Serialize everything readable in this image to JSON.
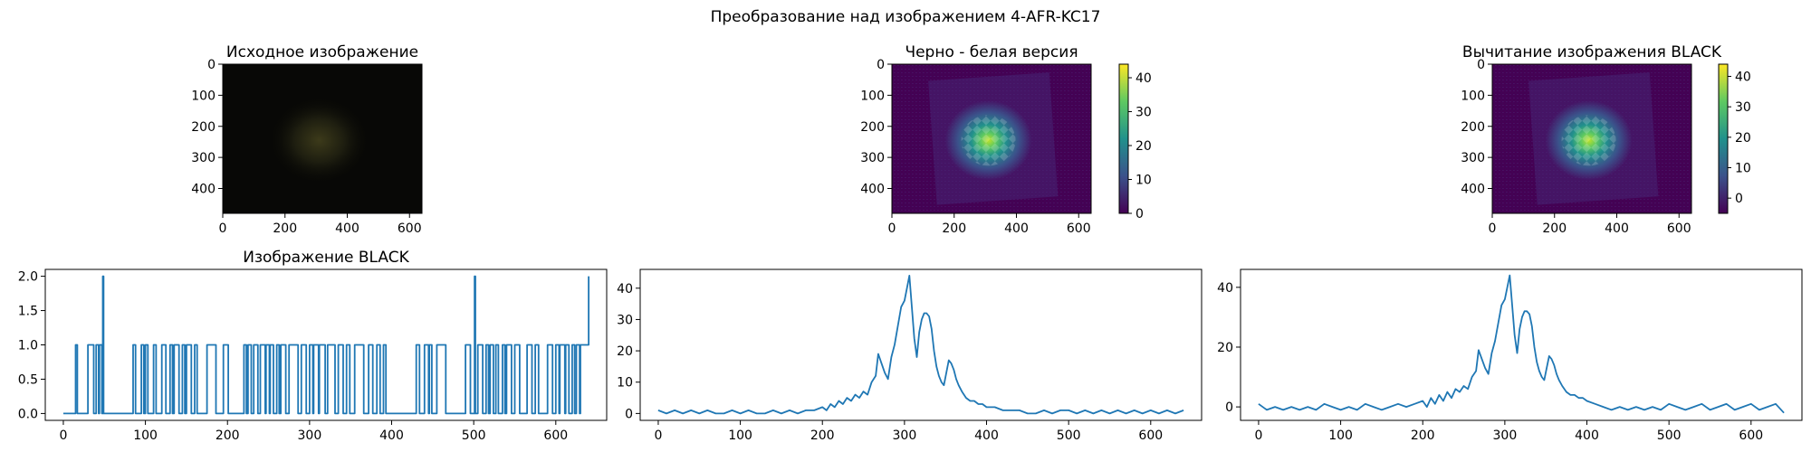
{
  "figure": {
    "suptitle": "Преобразование над изображением 4-AFR-KC17"
  },
  "colors": {
    "line": "#1f77b4",
    "heat_low": "#440154",
    "heat_high": "#fde725"
  },
  "chart_data": [
    {
      "id": "ax-original",
      "type": "heatmap",
      "title": "Исходное изображение",
      "colormap": "rgb-dark",
      "xlim": [
        0,
        640
      ],
      "ylim": [
        480,
        0
      ],
      "xticks": [
        0,
        200,
        400,
        600
      ],
      "yticks": [
        0,
        100,
        200,
        300,
        400
      ],
      "spot_center": [
        310,
        245
      ],
      "colorbar": null
    },
    {
      "id": "ax-grayscale",
      "type": "heatmap",
      "title": "Черно - белая версия",
      "colormap": "viridis",
      "xlim": [
        0,
        640
      ],
      "ylim": [
        480,
        0
      ],
      "xticks": [
        0,
        200,
        400,
        600
      ],
      "yticks": [
        0,
        100,
        200,
        300,
        400
      ],
      "spot_center": [
        310,
        245
      ],
      "colorbar": {
        "min": 0,
        "max": 44,
        "ticks": [
          0,
          10,
          20,
          30,
          40
        ]
      }
    },
    {
      "id": "ax-subtracted",
      "type": "heatmap",
      "title": "Вычитание изображения BLACK",
      "colormap": "viridis",
      "xlim": [
        0,
        640
      ],
      "ylim": [
        480,
        0
      ],
      "xticks": [
        0,
        200,
        400,
        600
      ],
      "yticks": [
        0,
        100,
        200,
        300,
        400
      ],
      "spot_center": [
        310,
        245
      ],
      "colorbar": {
        "min": -5,
        "max": 44,
        "ticks": [
          0,
          10,
          20,
          30,
          40
        ]
      }
    },
    {
      "id": "ax-black",
      "type": "line",
      "title": "Изображение BLACK",
      "xlim": [
        -22,
        662
      ],
      "ylim": [
        -0.1,
        2.1
      ],
      "xticks": [
        0,
        100,
        200,
        300,
        400,
        500,
        600
      ],
      "yticks": [
        0.0,
        0.5,
        1.0,
        1.5,
        2.0
      ],
      "ytick_labels": [
        "0.0",
        "0.5",
        "1.0",
        "1.5",
        "2.0"
      ],
      "ones_intervals": [
        [
          15,
          16
        ],
        [
          30,
          32
        ],
        [
          33,
          36
        ],
        [
          40,
          42
        ],
        [
          44,
          46
        ],
        [
          85,
          87
        ],
        [
          95,
          97
        ],
        [
          100,
          102
        ],
        [
          110,
          112
        ],
        [
          120,
          124
        ],
        [
          130,
          132
        ],
        [
          135,
          140
        ],
        [
          145,
          147
        ],
        [
          150,
          155
        ],
        [
          160,
          162
        ],
        [
          175,
          185
        ],
        [
          195,
          200
        ],
        [
          220,
          222
        ],
        [
          225,
          228
        ],
        [
          232,
          236
        ],
        [
          240,
          245
        ],
        [
          247,
          250
        ],
        [
          252,
          255
        ],
        [
          260,
          262
        ],
        [
          265,
          270
        ],
        [
          275,
          285
        ],
        [
          290,
          295
        ],
        [
          300,
          303
        ],
        [
          305,
          310
        ],
        [
          312,
          318
        ],
        [
          322,
          330
        ],
        [
          335,
          340
        ],
        [
          345,
          348
        ],
        [
          355,
          365
        ],
        [
          372,
          376
        ],
        [
          382,
          385
        ],
        [
          390,
          392
        ],
        [
          430,
          433
        ],
        [
          440,
          444
        ],
        [
          446,
          448
        ],
        [
          455,
          465
        ],
        [
          490,
          495
        ],
        [
          505,
          510
        ],
        [
          515,
          517
        ],
        [
          520,
          523
        ],
        [
          527,
          529
        ],
        [
          535,
          537
        ],
        [
          540,
          545
        ],
        [
          550,
          555
        ],
        [
          565,
          570
        ],
        [
          575,
          578
        ],
        [
          590,
          595
        ],
        [
          600,
          603
        ],
        [
          605,
          610
        ],
        [
          612,
          615
        ],
        [
          620,
          622
        ],
        [
          625,
          628
        ],
        [
          630,
          640
        ]
      ],
      "twos_at": [
        48,
        501,
        640
      ]
    },
    {
      "id": "ax-gray-profile",
      "type": "line",
      "title": "",
      "xlim": [
        -22,
        662
      ],
      "ylim": [
        -2.2,
        46
      ],
      "xticks": [
        0,
        100,
        200,
        300,
        400,
        500,
        600
      ],
      "yticks": [
        0,
        10,
        20,
        30,
        40
      ],
      "ytick_labels": [
        "0",
        "10",
        "20",
        "30",
        "40"
      ],
      "x": [
        0,
        10,
        20,
        30,
        40,
        50,
        60,
        70,
        80,
        90,
        100,
        110,
        120,
        130,
        140,
        150,
        160,
        170,
        180,
        190,
        200,
        205,
        210,
        215,
        220,
        225,
        230,
        235,
        240,
        245,
        250,
        255,
        260,
        265,
        268,
        272,
        276,
        280,
        284,
        288,
        292,
        296,
        300,
        303,
        306,
        309,
        312,
        315,
        318,
        321,
        324,
        327,
        330,
        333,
        336,
        339,
        342,
        345,
        348,
        351,
        354,
        357,
        360,
        363,
        366,
        370,
        375,
        380,
        385,
        390,
        395,
        400,
        410,
        420,
        430,
        440,
        450,
        460,
        470,
        480,
        490,
        500,
        510,
        520,
        530,
        540,
        550,
        560,
        570,
        580,
        590,
        600,
        610,
        620,
        630,
        640
      ],
      "y": [
        1,
        0,
        1,
        0,
        1,
        0,
        1,
        0,
        0,
        1,
        0,
        1,
        0,
        0,
        1,
        0,
        1,
        0,
        1,
        1,
        2,
        1,
        3,
        2,
        4,
        3,
        5,
        4,
        6,
        5,
        7,
        6,
        10,
        12,
        19,
        16,
        13,
        11,
        18,
        22,
        28,
        34,
        36,
        40,
        44,
        34,
        24,
        18,
        26,
        30,
        32,
        32,
        31,
        27,
        20,
        15,
        12,
        10,
        9,
        13,
        17,
        16,
        14,
        11,
        9,
        7,
        5,
        4,
        4,
        3,
        3,
        2,
        2,
        1,
        1,
        1,
        0,
        0,
        1,
        0,
        1,
        1,
        0,
        1,
        0,
        1,
        0,
        1,
        0,
        1,
        0,
        1,
        0,
        1,
        0,
        1
      ]
    },
    {
      "id": "ax-sub-profile",
      "type": "line",
      "title": "",
      "xlim": [
        -22,
        662
      ],
      "ylim": [
        -4.5,
        46
      ],
      "xticks": [
        0,
        100,
        200,
        300,
        400,
        500,
        600
      ],
      "yticks": [
        0,
        20,
        40
      ],
      "ytick_labels": [
        "0",
        "20",
        "40"
      ],
      "x": [
        0,
        10,
        20,
        30,
        40,
        50,
        60,
        70,
        80,
        90,
        100,
        110,
        120,
        130,
        140,
        150,
        160,
        170,
        180,
        190,
        200,
        205,
        210,
        215,
        220,
        225,
        230,
        235,
        240,
        245,
        250,
        255,
        260,
        265,
        268,
        272,
        276,
        280,
        284,
        288,
        292,
        296,
        300,
        303,
        306,
        309,
        312,
        315,
        318,
        321,
        324,
        327,
        330,
        333,
        336,
        339,
        342,
        345,
        348,
        351,
        354,
        357,
        360,
        363,
        366,
        370,
        375,
        380,
        385,
        390,
        395,
        400,
        410,
        420,
        430,
        440,
        450,
        460,
        470,
        480,
        490,
        500,
        510,
        520,
        530,
        540,
        550,
        560,
        570,
        580,
        590,
        600,
        610,
        620,
        630,
        640
      ],
      "y": [
        1,
        -1,
        0,
        -1,
        0,
        -1,
        0,
        -1,
        1,
        0,
        -1,
        0,
        -1,
        1,
        0,
        -1,
        0,
        1,
        0,
        1,
        2,
        0,
        3,
        1,
        4,
        2,
        5,
        3,
        6,
        5,
        7,
        6,
        10,
        12,
        19,
        16,
        13,
        11,
        18,
        22,
        28,
        34,
        36,
        40,
        44,
        34,
        24,
        18,
        26,
        30,
        32,
        32,
        31,
        27,
        20,
        15,
        12,
        10,
        9,
        13,
        17,
        16,
        14,
        11,
        9,
        7,
        5,
        4,
        4,
        3,
        3,
        2,
        1,
        0,
        -1,
        0,
        -1,
        0,
        -1,
        0,
        -1,
        1,
        0,
        -1,
        0,
        1,
        -1,
        0,
        1,
        -1,
        0,
        1,
        -1,
        0,
        1,
        -2
      ]
    }
  ]
}
